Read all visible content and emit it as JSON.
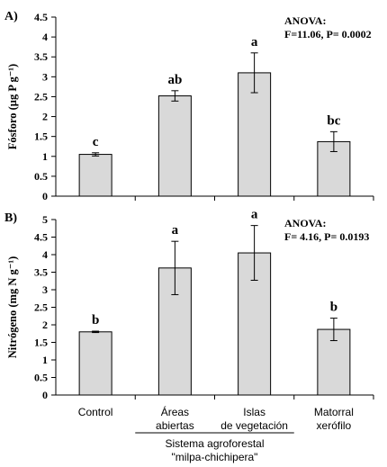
{
  "chart_data": [
    {
      "panel_label": "A)",
      "type": "bar",
      "categories": [
        "Control",
        "Áreas abiertas",
        "Islas de vegetación",
        "Matorral xerófilo"
      ],
      "values": [
        1.05,
        2.52,
        3.1,
        1.37
      ],
      "errors": [
        0.04,
        0.13,
        0.5,
        0.25
      ],
      "letters": [
        "c",
        "ab",
        "a",
        "bc"
      ],
      "ylabel": "Fósforo (µg P g⁻¹)",
      "ylim": [
        0,
        4.5
      ],
      "yticks": [
        0,
        0.5,
        1,
        1.5,
        2,
        2.5,
        3,
        3.5,
        4,
        4.5
      ],
      "grid": false,
      "annotation": {
        "title": "ANOVA:",
        "stats": "F=11.06,  P= 0.0002"
      }
    },
    {
      "panel_label": "B)",
      "type": "bar",
      "categories": [
        "Control",
        "Áreas abiertas",
        "Islas de vegetación",
        "Matorral xerófilo"
      ],
      "values": [
        1.8,
        3.62,
        4.05,
        1.87
      ],
      "errors": [
        0.02,
        0.76,
        0.78,
        0.32
      ],
      "letters": [
        "b",
        "a",
        "a",
        "b"
      ],
      "ylabel": "Nitrógeno (mg N g⁻¹)",
      "ylim": [
        0,
        5
      ],
      "yticks": [
        0,
        0.5,
        1,
        1.5,
        2,
        2.5,
        3,
        3.5,
        4,
        4.5,
        5
      ],
      "grid": false,
      "annotation": {
        "title": "ANOVA:",
        "stats": "F= 4.16,  P= 0.0193"
      }
    }
  ],
  "x_axis": {
    "category_labels": [
      [
        "Control"
      ],
      [
        "Áreas",
        "abiertas"
      ],
      [
        "Islas",
        "de vegetación"
      ],
      [
        "Matorral",
        "xerófilo"
      ]
    ],
    "group_label_lines": [
      "Sistema agroforestal",
      "\"milpa-chichipera\""
    ]
  },
  "colors": {
    "bar_fill": "#d9d9d9",
    "bar_stroke": "#000000",
    "axis": "#000000",
    "text": "#000000"
  }
}
